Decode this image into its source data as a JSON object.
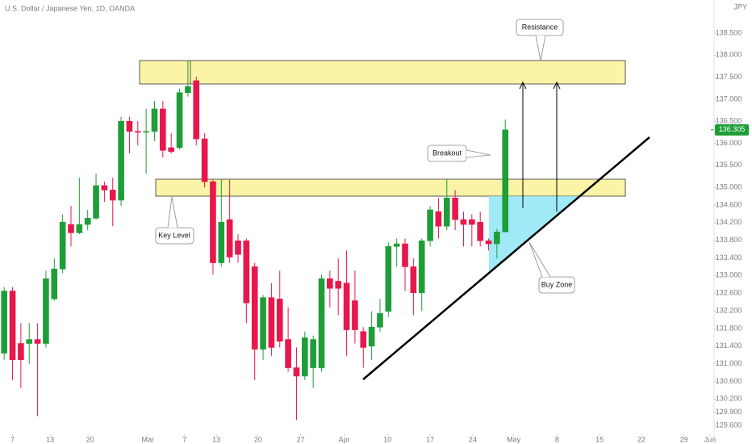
{
  "header": {
    "symbol": "U.S. Dollar / Japanese Yen, 1D, OANDA",
    "currency": "JPY"
  },
  "chart_data": {
    "type": "candlestick",
    "ohlc": [
      [
        131.24,
        132.74,
        131.09,
        132.65
      ],
      [
        132.65,
        132.74,
        130.63,
        131.09
      ],
      [
        131.46,
        131.92,
        130.45,
        131.09
      ],
      [
        131.46,
        131.92,
        131.0,
        131.55
      ],
      [
        131.55,
        131.92,
        129.81,
        131.46
      ],
      [
        131.46,
        133.11,
        131.37,
        132.93
      ],
      [
        132.47,
        133.39,
        132.43,
        133.15
      ],
      [
        133.15,
        134.39,
        133.05,
        134.21
      ],
      [
        134.16,
        134.58,
        133.66,
        133.97
      ],
      [
        133.97,
        135.22,
        133.94,
        134.16
      ],
      [
        134.16,
        134.49,
        134.03,
        134.3
      ],
      [
        134.3,
        135.31,
        134.27,
        135.04
      ],
      [
        135.04,
        135.13,
        134.67,
        134.94
      ],
      [
        134.94,
        135.22,
        134.12,
        134.71
      ],
      [
        134.71,
        136.6,
        134.58,
        136.5
      ],
      [
        136.5,
        136.6,
        135.77,
        136.27
      ],
      [
        136.27,
        136.5,
        135.95,
        136.25
      ],
      [
        136.25,
        136.78,
        135.31,
        136.27
      ],
      [
        136.27,
        136.96,
        136.05,
        136.78
      ],
      [
        136.78,
        136.96,
        135.68,
        135.84
      ],
      [
        135.9,
        136.23,
        135.77,
        135.81
      ],
      [
        135.9,
        137.24,
        135.86,
        137.15
      ],
      [
        137.15,
        137.88,
        137.06,
        137.29
      ],
      [
        137.42,
        137.51,
        135.95,
        136.1
      ],
      [
        136.1,
        136.23,
        135.0,
        135.13
      ],
      [
        135.13,
        135.18,
        133.02,
        133.29
      ],
      [
        133.29,
        135.18,
        133.2,
        134.21
      ],
      [
        134.27,
        135.18,
        133.29,
        133.42
      ],
      [
        133.79,
        133.94,
        133.29,
        133.48
      ],
      [
        133.79,
        133.84,
        131.92,
        132.38
      ],
      [
        133.2,
        133.29,
        130.63,
        131.33
      ],
      [
        131.33,
        132.56,
        131.09,
        132.5
      ],
      [
        132.5,
        132.83,
        131.18,
        131.37
      ],
      [
        132.47,
        133.11,
        131.37,
        131.51
      ],
      [
        131.55,
        132.28,
        130.82,
        130.91
      ],
      [
        130.91,
        131.37,
        129.72,
        130.72
      ],
      [
        130.72,
        131.73,
        130.63,
        131.59
      ],
      [
        130.91,
        131.64,
        130.45,
        131.55
      ],
      [
        130.91,
        133.02,
        130.82,
        132.93
      ],
      [
        132.93,
        133.11,
        132.28,
        132.71
      ],
      [
        132.87,
        133.39,
        132.1,
        132.71
      ],
      [
        132.83,
        133.57,
        131.18,
        131.77
      ],
      [
        132.43,
        133.11,
        131.46,
        131.77
      ],
      [
        131.73,
        131.83,
        130.91,
        131.37
      ],
      [
        131.4,
        132.19,
        131.09,
        131.83
      ],
      [
        131.83,
        132.47,
        131.73,
        132.14
      ],
      [
        132.19,
        133.75,
        132.06,
        133.66
      ],
      [
        133.66,
        133.84,
        133.2,
        133.72
      ],
      [
        133.72,
        133.84,
        132.65,
        133.2
      ],
      [
        133.2,
        133.39,
        132.1,
        132.61
      ],
      [
        132.61,
        133.84,
        132.19,
        133.79
      ],
      [
        133.79,
        134.58,
        133.66,
        134.49
      ],
      [
        134.45,
        134.76,
        133.84,
        134.12
      ],
      [
        134.12,
        135.18,
        134.03,
        134.76
      ],
      [
        134.76,
        134.94,
        134.03,
        134.27
      ],
      [
        134.27,
        134.45,
        133.66,
        134.16
      ],
      [
        134.27,
        134.39,
        133.66,
        134.16
      ],
      [
        134.21,
        134.45,
        133.66,
        133.79
      ],
      [
        133.79,
        133.84,
        133.57,
        133.72
      ],
      [
        133.72,
        134.06,
        133.39,
        133.99
      ],
      [
        133.99,
        136.54,
        133.99,
        136.305
      ]
    ],
    "up_color": "#1f9e38",
    "down_color": "#e8174c",
    "ylim": [
      129.4,
      139.25
    ],
    "yticks": [
      {
        "value": 138.5,
        "label": "138.500"
      },
      {
        "value": 138,
        "label": "138.000"
      },
      {
        "value": 137.5,
        "label": "137.500"
      },
      {
        "value": 137,
        "label": "137.000"
      },
      {
        "value": 136.5,
        "label": "136.500"
      },
      {
        "value": 136,
        "label": "136.000"
      },
      {
        "value": 135.5,
        "label": "135.500"
      },
      {
        "value": 135,
        "label": "135.000"
      },
      {
        "value": 134.6,
        "label": "134.600"
      },
      {
        "value": 134.2,
        "label": "134.200"
      },
      {
        "value": 133.8,
        "label": "133.800"
      },
      {
        "value": 133.4,
        "label": "133.400"
      },
      {
        "value": 133,
        "label": "133.000"
      },
      {
        "value": 132.6,
        "label": "132.600"
      },
      {
        "value": 132.2,
        "label": "132.200"
      },
      {
        "value": 131.8,
        "label": "131.800"
      },
      {
        "value": 131.4,
        "label": "131.400"
      },
      {
        "value": 131,
        "label": "131.000"
      },
      {
        "value": 130.6,
        "label": "130.600"
      },
      {
        "value": 130.2,
        "label": "130.200"
      },
      {
        "value": 129.9,
        "label": "129.900"
      },
      {
        "value": 129.6,
        "label": "129.600"
      }
    ],
    "xlim": [
      -0.5,
      85
    ],
    "xticks": [
      {
        "value": 1,
        "label": "7"
      },
      {
        "value": 5.5,
        "label": "13"
      },
      {
        "value": 10.3,
        "label": "20"
      },
      {
        "value": 17.2,
        "label": "Mar"
      },
      {
        "value": 21.6,
        "label": "7"
      },
      {
        "value": 25.4,
        "label": "13"
      },
      {
        "value": 30.4,
        "label": "20"
      },
      {
        "value": 35.5,
        "label": "27"
      },
      {
        "value": 40.7,
        "label": "Apr"
      },
      {
        "value": 45.9,
        "label": "10"
      },
      {
        "value": 51,
        "label": "17"
      },
      {
        "value": 56.1,
        "label": "24"
      },
      {
        "value": 61,
        "label": "May"
      },
      {
        "value": 66.2,
        "label": "8"
      },
      {
        "value": 71.3,
        "label": "15"
      },
      {
        "value": 76.3,
        "label": "22"
      },
      {
        "value": 81.4,
        "label": "29"
      },
      {
        "value": 84.5,
        "label": "Jun"
      }
    ],
    "last_price": 136.305,
    "annotations": [
      "Resistance",
      "Breakout",
      "Key Level",
      "Buy Zone"
    ]
  }
}
